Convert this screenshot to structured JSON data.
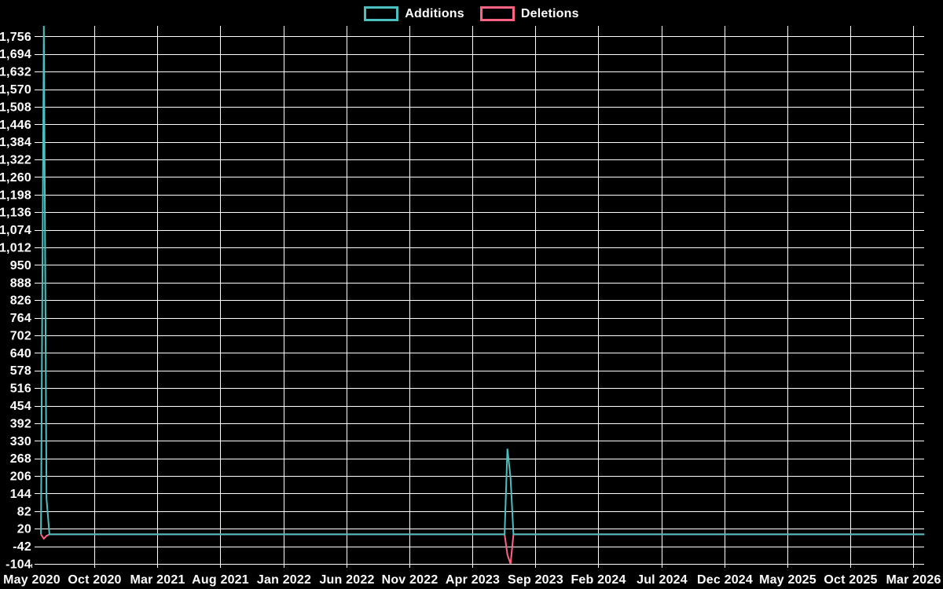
{
  "window": {
    "background_color": "#000000",
    "text_color": "#ffffff",
    "grid_color": "#ffffff"
  },
  "chart_data": {
    "type": "line",
    "title": "",
    "xlabel": "",
    "ylabel": "",
    "grid": true,
    "legend_position": "top-center",
    "x_axis_kind": "time",
    "xticks": [
      "May 2020",
      "Oct 2020",
      "Mar 2021",
      "Aug 2021",
      "Jan 2022",
      "Jun 2022",
      "Nov 2022",
      "Apr 2023",
      "Sep 2023",
      "Feb 2024",
      "Jul 2024",
      "Dec 2024",
      "May 2025",
      "Oct 2025",
      "Mar 2026"
    ],
    "xtick_interval_months": 5,
    "yticks": [
      -104,
      -42,
      20,
      82,
      144,
      206,
      268,
      330,
      392,
      454,
      516,
      578,
      640,
      702,
      764,
      826,
      888,
      950,
      1012,
      1074,
      1136,
      1198,
      1260,
      1322,
      1384,
      1446,
      1508,
      1570,
      1632,
      1694,
      1756
    ],
    "ytick_step": 62,
    "ylim": [
      -104,
      1793
    ],
    "series": [
      {
        "name": "Additions",
        "color": "#4bc0c0",
        "points": [
          [
            "2020-05-24",
            0
          ],
          [
            "2020-05-31",
            1793
          ],
          [
            "2020-06-07",
            126
          ],
          [
            "2020-06-14",
            0
          ],
          [
            "2023-06-18",
            0
          ],
          [
            "2023-06-25",
            302
          ],
          [
            "2023-07-02",
            199
          ],
          [
            "2023-07-09",
            0
          ],
          [
            "2026-03-28",
            0
          ]
        ]
      },
      {
        "name": "Deletions",
        "color": "#ff6384",
        "points": [
          [
            "2020-05-24",
            0
          ],
          [
            "2020-05-31",
            -15
          ],
          [
            "2020-06-07",
            -5
          ],
          [
            "2020-06-14",
            0
          ],
          [
            "2023-06-18",
            0
          ],
          [
            "2023-06-25",
            -72
          ],
          [
            "2023-07-02",
            -104
          ],
          [
            "2023-07-09",
            0
          ],
          [
            "2026-03-28",
            0
          ]
        ]
      }
    ]
  }
}
